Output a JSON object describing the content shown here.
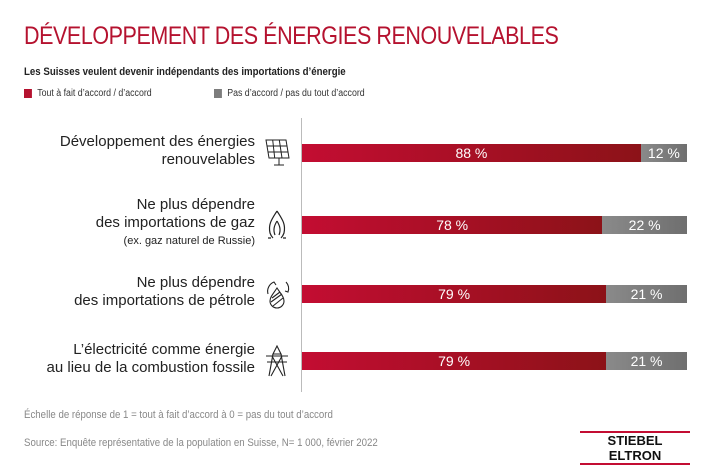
{
  "chart_data": {
    "type": "bar",
    "orientation": "horizontal-stacked",
    "title": "DÉVELOPPEMENT DES ÉNERGIES RENOUVELABLES",
    "subtitle": "Les Suisses veulent devenir indépendants des importations d’énergie",
    "categories": [
      {
        "lines": [
          "Développement des énergies",
          "renouvelables"
        ],
        "note": "",
        "icon": "solar-panel-icon"
      },
      {
        "lines": [
          "Ne plus dépendre",
          "des importations de gaz"
        ],
        "note": "(ex. gaz naturel de Russie)",
        "icon": "gas-flame-icon"
      },
      {
        "lines": [
          "Ne plus dépendre",
          "des importations de pétrole"
        ],
        "note": "",
        "icon": "oil-drop-recycle-icon"
      },
      {
        "lines": [
          "L’électricité comme énergie",
          "au lieu de la combustion fossile"
        ],
        "note": "",
        "icon": "power-pylon-icon"
      }
    ],
    "series": [
      {
        "name": "Tout à fait d’accord / d’accord",
        "values": [
          88,
          78,
          79,
          79
        ],
        "labels": [
          "88 %",
          "78 %",
          "79 %",
          "79 %"
        ],
        "color": "#b5122f"
      },
      {
        "name": "Pas d’accord / pas du tout d’accord",
        "values": [
          12,
          22,
          21,
          21
        ],
        "labels": [
          "12 %",
          "22 %",
          "21 %",
          "21 %"
        ],
        "color": "#7d7d7d"
      }
    ],
    "xlim": [
      0,
      100
    ],
    "legend": "top-left",
    "grid": false
  },
  "footer": {
    "scale": "Échelle de réponse de 1 = tout à fait d’accord à 0 = pas du tout d’accord",
    "source": "Source: Enquête représentative de la population en Suisse, N= 1 000, février 2022"
  },
  "logo": "STIEBEL ELTRON"
}
